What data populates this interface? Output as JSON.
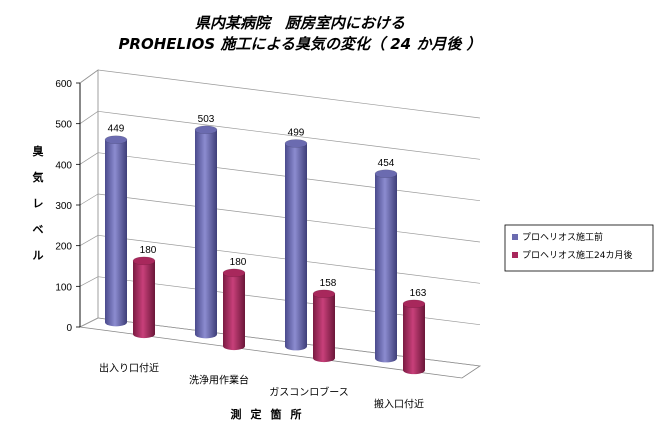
{
  "chart_data": {
    "type": "bar",
    "title_lines": [
      "県内某病院　厨房室内における",
      "PROHELIOS 施工による臭気の変化（ 24 か月後 ）"
    ],
    "ylabel": "臭気レベル",
    "xlabel": "測定箇所",
    "ylim": [
      0,
      600
    ],
    "yticks": [
      0,
      100,
      200,
      300,
      400,
      500,
      600
    ],
    "categories": [
      "出入り口付近",
      "洗浄用作業台",
      "ガスコンロブース",
      "搬入口付近"
    ],
    "series": [
      {
        "name": "プロヘリオス施工前",
        "values": [
          449,
          503,
          499,
          454
        ],
        "color": "#6b6bb0",
        "labels": [
          "449",
          "503",
          "499",
          "454"
        ]
      },
      {
        "name": "プロヘリオス施工24カ月後",
        "values": [
          180,
          180,
          158,
          163
        ],
        "color": "#a8285c",
        "labels": [
          "180",
          "180",
          "158",
          "163"
        ]
      }
    ],
    "legend_position": "right",
    "grid": true
  }
}
